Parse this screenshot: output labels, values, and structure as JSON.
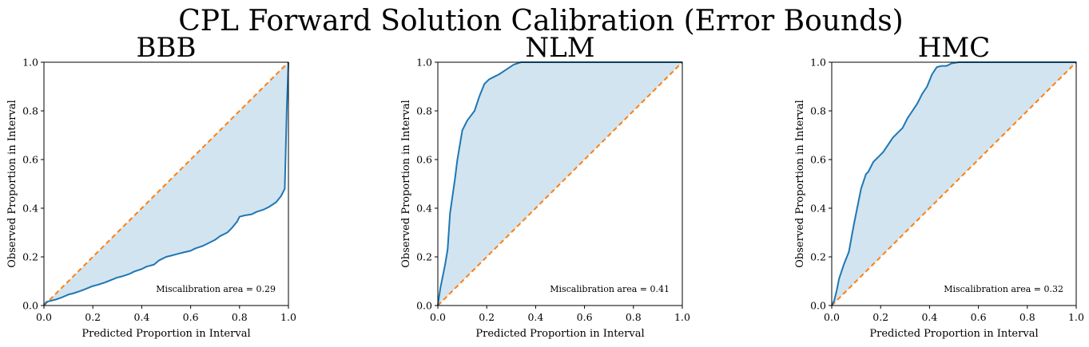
{
  "figure": {
    "suptitle": "CPL Forward Solution Calibration (Error Bounds)"
  },
  "colors": {
    "curve": "#1f77b4",
    "ideal": "#ff7f0e",
    "fill": "#1f77b4"
  },
  "chart_data": [
    {
      "type": "line",
      "title": "BBB",
      "xlabel": "Predicted Proportion in Interval",
      "ylabel": "Observed Proportion in Interval",
      "xlim": [
        0,
        1
      ],
      "ylim": [
        0,
        1
      ],
      "xticks": [
        "0.0",
        "0.2",
        "0.4",
        "0.6",
        "0.8",
        "1.0"
      ],
      "yticks": [
        "0.0",
        "0.2",
        "0.4",
        "0.6",
        "0.8",
        "1.0"
      ],
      "annotation": "Miscalibration area = 0.29",
      "series": [
        {
          "role": "observed",
          "x": [
            0,
            0.01,
            0.03,
            0.05,
            0.07,
            0.1,
            0.12,
            0.15,
            0.17,
            0.2,
            0.22,
            0.25,
            0.27,
            0.3,
            0.32,
            0.35,
            0.37,
            0.4,
            0.42,
            0.45,
            0.47,
            0.5,
            0.52,
            0.55,
            0.57,
            0.6,
            0.62,
            0.65,
            0.67,
            0.7,
            0.72,
            0.75,
            0.77,
            0.79,
            0.8,
            0.82,
            0.85,
            0.87,
            0.9,
            0.92,
            0.95,
            0.97,
            0.985,
            0.993,
            1.0
          ],
          "y": [
            0,
            0.015,
            0.02,
            0.025,
            0.032,
            0.045,
            0.05,
            0.06,
            0.068,
            0.08,
            0.085,
            0.095,
            0.103,
            0.115,
            0.12,
            0.13,
            0.14,
            0.15,
            0.16,
            0.168,
            0.185,
            0.2,
            0.205,
            0.213,
            0.218,
            0.225,
            0.235,
            0.245,
            0.255,
            0.27,
            0.285,
            0.3,
            0.32,
            0.345,
            0.365,
            0.37,
            0.375,
            0.385,
            0.395,
            0.405,
            0.425,
            0.45,
            0.48,
            0.8,
            1.0
          ]
        }
      ]
    },
    {
      "type": "line",
      "title": "NLM",
      "xlabel": "Predicted Proportion in Interval",
      "ylabel": "Observed Proportion in Interval",
      "xlim": [
        0,
        1
      ],
      "ylim": [
        0,
        1
      ],
      "xticks": [
        "0.0",
        "0.2",
        "0.4",
        "0.6",
        "0.8",
        "1.0"
      ],
      "yticks": [
        "0.0",
        "0.2",
        "0.4",
        "0.6",
        "0.8",
        "1.0"
      ],
      "annotation": "Miscalibration area = 0.41",
      "series": [
        {
          "role": "observed",
          "x": [
            0,
            0.01,
            0.02,
            0.03,
            0.04,
            0.05,
            0.06,
            0.07,
            0.08,
            0.09,
            0.1,
            0.12,
            0.15,
            0.17,
            0.19,
            0.21,
            0.23,
            0.25,
            0.28,
            0.31,
            0.34,
            0.4,
            0.5,
            0.6,
            0.7,
            0.8,
            0.9,
            1.0
          ],
          "y": [
            0,
            0.07,
            0.12,
            0.17,
            0.23,
            0.38,
            0.45,
            0.52,
            0.6,
            0.66,
            0.72,
            0.76,
            0.8,
            0.86,
            0.91,
            0.93,
            0.94,
            0.95,
            0.97,
            0.99,
            1.0,
            1.0,
            1.0,
            1.0,
            1.0,
            1.0,
            1.0,
            1.0
          ]
        }
      ]
    },
    {
      "type": "line",
      "title": "HMC",
      "xlabel": "Predicted Proportion in Interval",
      "ylabel": "Observed Proportion in Interval",
      "xlim": [
        0,
        1
      ],
      "ylim": [
        0,
        1
      ],
      "xticks": [
        "0.0",
        "0.2",
        "0.4",
        "0.6",
        "0.8",
        "1.0"
      ],
      "yticks": [
        "0.0",
        "0.2",
        "0.4",
        "0.6",
        "0.8",
        "1.0"
      ],
      "annotation": "Miscalibration area = 0.32",
      "series": [
        {
          "role": "observed",
          "x": [
            0,
            0.01,
            0.02,
            0.03,
            0.05,
            0.07,
            0.09,
            0.11,
            0.12,
            0.14,
            0.15,
            0.17,
            0.19,
            0.21,
            0.23,
            0.25,
            0.27,
            0.29,
            0.31,
            0.33,
            0.35,
            0.37,
            0.39,
            0.41,
            0.43,
            0.45,
            0.47,
            0.49,
            0.52,
            0.6,
            0.7,
            0.8,
            0.9,
            1.0
          ],
          "y": [
            0,
            0.02,
            0.06,
            0.11,
            0.17,
            0.22,
            0.33,
            0.43,
            0.48,
            0.54,
            0.55,
            0.59,
            0.61,
            0.63,
            0.66,
            0.69,
            0.71,
            0.73,
            0.77,
            0.8,
            0.83,
            0.87,
            0.9,
            0.95,
            0.98,
            0.985,
            0.985,
            0.995,
            1.0,
            1.0,
            1.0,
            1.0,
            1.0,
            1.0
          ]
        }
      ]
    }
  ]
}
